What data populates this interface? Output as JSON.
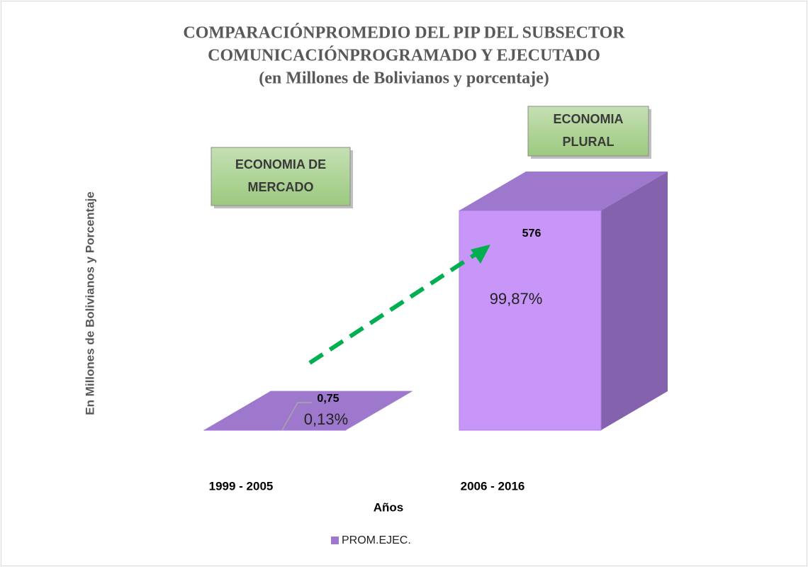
{
  "chart_data": {
    "type": "bar",
    "title": [
      "COMPARACIÓNPROMEDIO DEL PIP DEL SUBSECTOR",
      "COMUNICACIÓNPROGRAMADO Y EJECUTADO",
      "(en Millones de Bolivianos y porcentaje)"
    ],
    "y_label": "En Millones de Bolivianos y Porcentaje",
    "x_label": "Años",
    "categories": [
      "1999 - 2005",
      "2006 - 2016"
    ],
    "series": [
      {
        "name": "PROM.EJEC.",
        "color": "#c896f8",
        "values": [
          0.75,
          576
        ],
        "value_labels": [
          "0,75",
          "576"
        ]
      }
    ],
    "shares": [
      0.13,
      99.87
    ],
    "share_labels": [
      "0,13%",
      "99,87%"
    ],
    "annotations": [
      {
        "lines": [
          "ECONOMIA DE",
          "MERCADO"
        ]
      },
      {
        "lines": [
          "ECONOMIA",
          "PLURAL"
        ]
      }
    ],
    "legend": "bottom"
  }
}
